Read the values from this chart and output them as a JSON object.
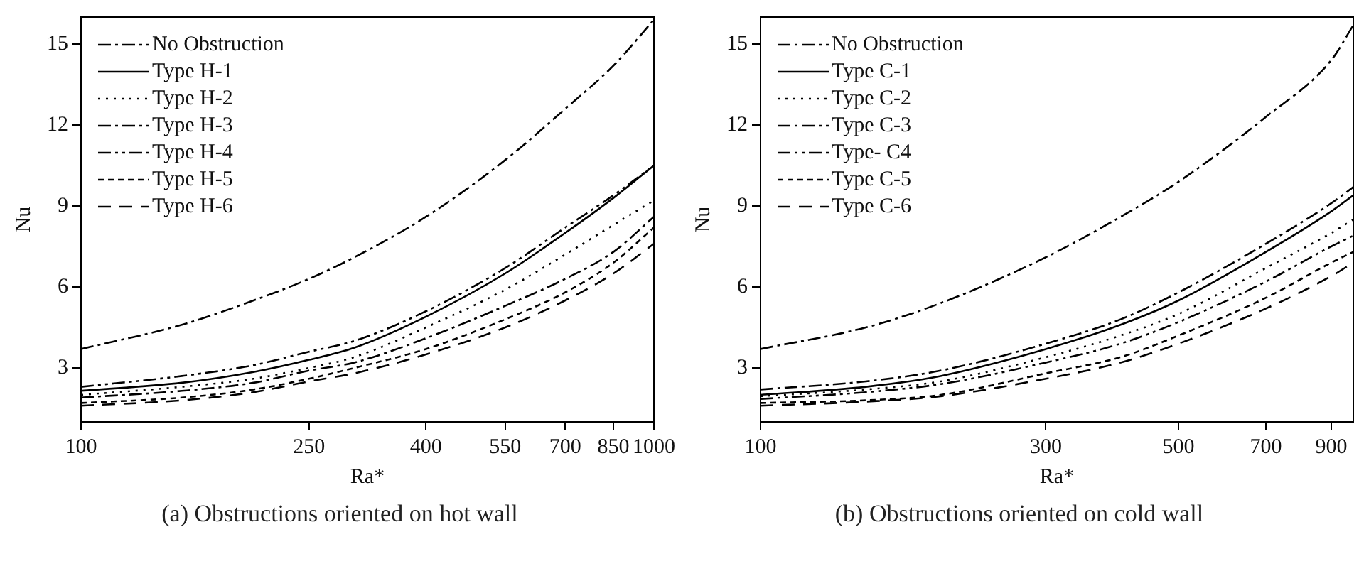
{
  "chart_data": [
    {
      "type": "line",
      "xlabel": "Ra*",
      "ylabel": "Nu",
      "annotations": [
        "(a) Obstructions oriented on hot wall"
      ],
      "log": "x",
      "xlim": [
        100,
        1000
      ],
      "xticks": [
        100,
        250,
        400,
        550,
        700,
        850,
        1000
      ],
      "ylim": [
        1,
        16
      ],
      "yticks": [
        3,
        6,
        9,
        12,
        15
      ],
      "grid": false,
      "legend": "top left",
      "marker": "none",
      "x": [
        100,
        150,
        200,
        250,
        300,
        400,
        550,
        700,
        850,
        1000
      ],
      "series": [
        {
          "name": "No Obstruction",
          "color": "#000000",
          "line_style": "dashdot",
          "values": [
            3.7,
            4.6,
            5.5,
            6.3,
            7.1,
            8.6,
            10.7,
            12.6,
            14.2,
            15.9
          ]
        },
        {
          "name": "Type H-1",
          "color": "#000000",
          "line_style": "solid",
          "values": [
            2.15,
            2.45,
            2.85,
            3.3,
            3.75,
            4.9,
            6.5,
            8.0,
            9.3,
            10.5
          ]
        },
        {
          "name": "Type H-2",
          "color": "#000000",
          "line_style": "dotted",
          "values": [
            2.0,
            2.3,
            2.6,
            3.0,
            3.4,
            4.5,
            5.9,
            7.2,
            8.3,
            9.2
          ]
        },
        {
          "name": "Type H-3",
          "color": "#000000",
          "line_style": "dashdot",
          "values": [
            1.9,
            2.15,
            2.45,
            2.9,
            3.2,
            4.1,
            5.3,
            6.3,
            7.3,
            8.6
          ]
        },
        {
          "name": "Type H-4",
          "color": "#000000",
          "line_style": "dashdotdot",
          "values": [
            2.3,
            2.7,
            3.1,
            3.6,
            4.0,
            5.1,
            6.7,
            8.2,
            9.4,
            10.5
          ]
        },
        {
          "name": "Type H-5",
          "color": "#000000",
          "line_style": "dashed",
          "values": [
            1.7,
            1.9,
            2.2,
            2.6,
            3.0,
            3.7,
            4.8,
            5.8,
            6.9,
            8.2
          ]
        },
        {
          "name": "Type H-6",
          "color": "#000000",
          "line_style": "longdashed",
          "values": [
            1.6,
            1.8,
            2.1,
            2.5,
            2.8,
            3.5,
            4.5,
            5.5,
            6.5,
            7.6
          ]
        }
      ]
    },
    {
      "type": "line",
      "xlabel": "Ra*",
      "ylabel": "Nu",
      "annotations": [
        "(b) Obstructions oriented on cold wall"
      ],
      "log": "x",
      "xlim": [
        100,
        980
      ],
      "xticks": [
        100,
        300,
        500,
        700,
        900
      ],
      "ylim": [
        1,
        16
      ],
      "yticks": [
        3,
        6,
        9,
        12,
        15
      ],
      "grid": false,
      "legend": "top left",
      "marker": "none",
      "x": [
        100,
        150,
        200,
        300,
        400,
        500,
        700,
        900,
        980
      ],
      "series": [
        {
          "name": "No Obstruction",
          "color": "#000000",
          "line_style": "dashdot",
          "values": [
            3.7,
            4.5,
            5.4,
            7.1,
            8.6,
            9.9,
            12.3,
            14.4,
            15.7
          ]
        },
        {
          "name": "Type C-1",
          "color": "#000000",
          "line_style": "solid",
          "values": [
            2.0,
            2.3,
            2.7,
            3.7,
            4.6,
            5.5,
            7.3,
            8.8,
            9.4
          ]
        },
        {
          "name": "Type C-2",
          "color": "#000000",
          "line_style": "dotted",
          "values": [
            1.95,
            2.2,
            2.5,
            3.4,
            4.2,
            5.0,
            6.7,
            8.0,
            8.5
          ]
        },
        {
          "name": "Type C-3",
          "color": "#000000",
          "line_style": "dashdot",
          "values": [
            2.2,
            2.5,
            2.9,
            3.9,
            4.8,
            5.8,
            7.6,
            9.1,
            9.7
          ]
        },
        {
          "name": "Type- C4",
          "color": "#000000",
          "line_style": "dashdotdot",
          "values": [
            1.85,
            2.1,
            2.4,
            3.2,
            3.9,
            4.7,
            6.2,
            7.5,
            7.9
          ]
        },
        {
          "name": "Type C-5",
          "color": "#000000",
          "line_style": "dashed",
          "values": [
            1.7,
            1.8,
            2.0,
            2.8,
            3.4,
            4.2,
            5.6,
            6.9,
            7.3
          ]
        },
        {
          "name": "Type C-6",
          "color": "#000000",
          "line_style": "longdashed",
          "values": [
            1.6,
            1.75,
            1.95,
            2.6,
            3.2,
            3.9,
            5.2,
            6.4,
            6.9
          ]
        }
      ]
    }
  ]
}
